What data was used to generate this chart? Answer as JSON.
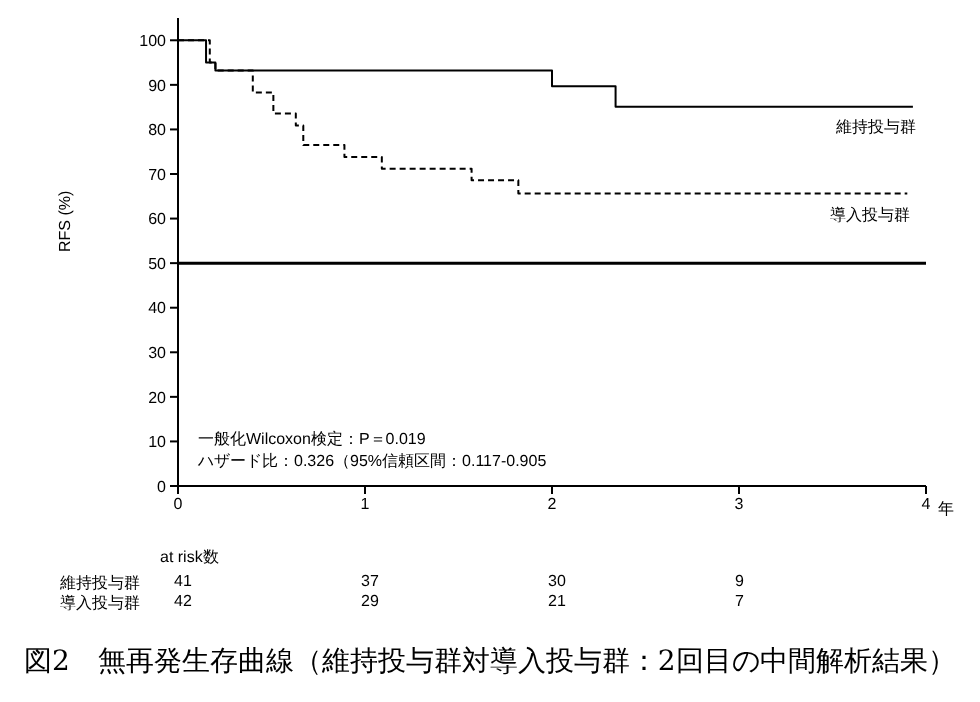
{
  "chart_data": {
    "type": "step",
    "title": "図2　無再発生存曲線（維持投与群対導入投与群：2回目の中間解析結果）",
    "xlabel": "年",
    "ylabel": "RFS (%)",
    "series": [
      {
        "name": "維持投与群",
        "color": "#000000",
        "line_style": "solid",
        "x": [
          0,
          0.15,
          0.2,
          2.0,
          2.34,
          3.93
        ],
        "values": [
          100,
          95,
          93.2,
          89.7,
          85.1,
          85.1
        ]
      },
      {
        "name": "導入投与群",
        "color": "#000000",
        "line_style": "dashed",
        "x": [
          0,
          0.17,
          0.2,
          0.4,
          0.51,
          0.63,
          0.67,
          0.89,
          1.09,
          1.57,
          1.82,
          3.9
        ],
        "values": [
          100,
          95,
          93.2,
          88.3,
          83.6,
          80.9,
          76.5,
          73.8,
          71.2,
          68.6,
          65.6,
          65.6
        ]
      }
    ],
    "xlim": [
      0,
      4
    ],
    "xticks": [
      0,
      1,
      2,
      3,
      4
    ],
    "ylim": [
      0,
      105
    ],
    "yticks": [
      0,
      10,
      20,
      30,
      40,
      50,
      60,
      70,
      80,
      90,
      100
    ],
    "ref_lines": [
      {
        "axis": "y",
        "value": 50,
        "color": "#000000"
      }
    ],
    "marker": "none",
    "legend": false,
    "grid": false,
    "annotations": [
      "一般化Wilcoxon検定：P＝0.019",
      "ハザード比：0.326（95%信頼区間：0.117-0.905",
      "at risk数",
      "41",
      "37",
      "30",
      "9",
      "42",
      "29",
      "21",
      "7"
    ]
  }
}
